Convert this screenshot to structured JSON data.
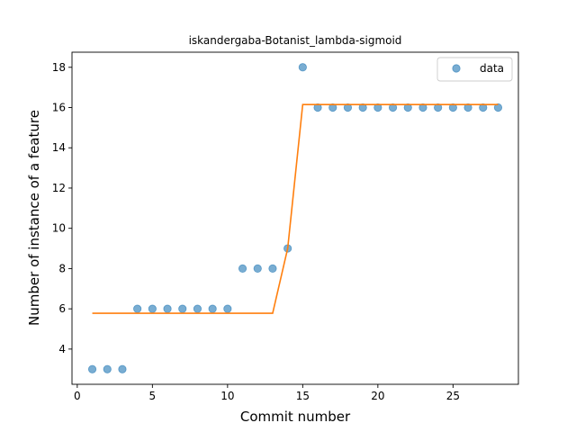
{
  "chart_data": {
    "type": "scatter",
    "title": "iskandergaba-Botanist_lambda-sigmoid",
    "xlabel": "Commit number",
    "ylabel": "Number of instance of a feature",
    "xlim": [
      -0.35,
      29.35
    ],
    "ylim": [
      2.25,
      18.75
    ],
    "xticks": [
      0,
      5,
      10,
      15,
      20,
      25
    ],
    "yticks": [
      4,
      6,
      8,
      10,
      12,
      14,
      16,
      18
    ],
    "grid": false,
    "legend": {
      "position": "top-right",
      "entries": [
        "data"
      ]
    },
    "series": [
      {
        "name": "data",
        "kind": "scatter",
        "color": "#1f77b4",
        "x": [
          1,
          2,
          3,
          4,
          5,
          6,
          7,
          8,
          9,
          10,
          11,
          12,
          13,
          14,
          15,
          16,
          17,
          18,
          19,
          20,
          21,
          22,
          23,
          24,
          25,
          26,
          27,
          28
        ],
        "y": [
          3,
          3,
          3,
          6,
          6,
          6,
          6,
          6,
          6,
          6,
          8,
          8,
          8,
          9,
          18,
          16,
          16,
          16,
          16,
          16,
          16,
          16,
          16,
          16,
          16,
          16,
          16,
          16
        ]
      },
      {
        "kind": "line",
        "color": "#ff7f0e",
        "x": [
          1,
          13,
          14,
          15,
          28
        ],
        "y": [
          5.78,
          5.78,
          9.0,
          16.15,
          16.15
        ]
      }
    ]
  }
}
